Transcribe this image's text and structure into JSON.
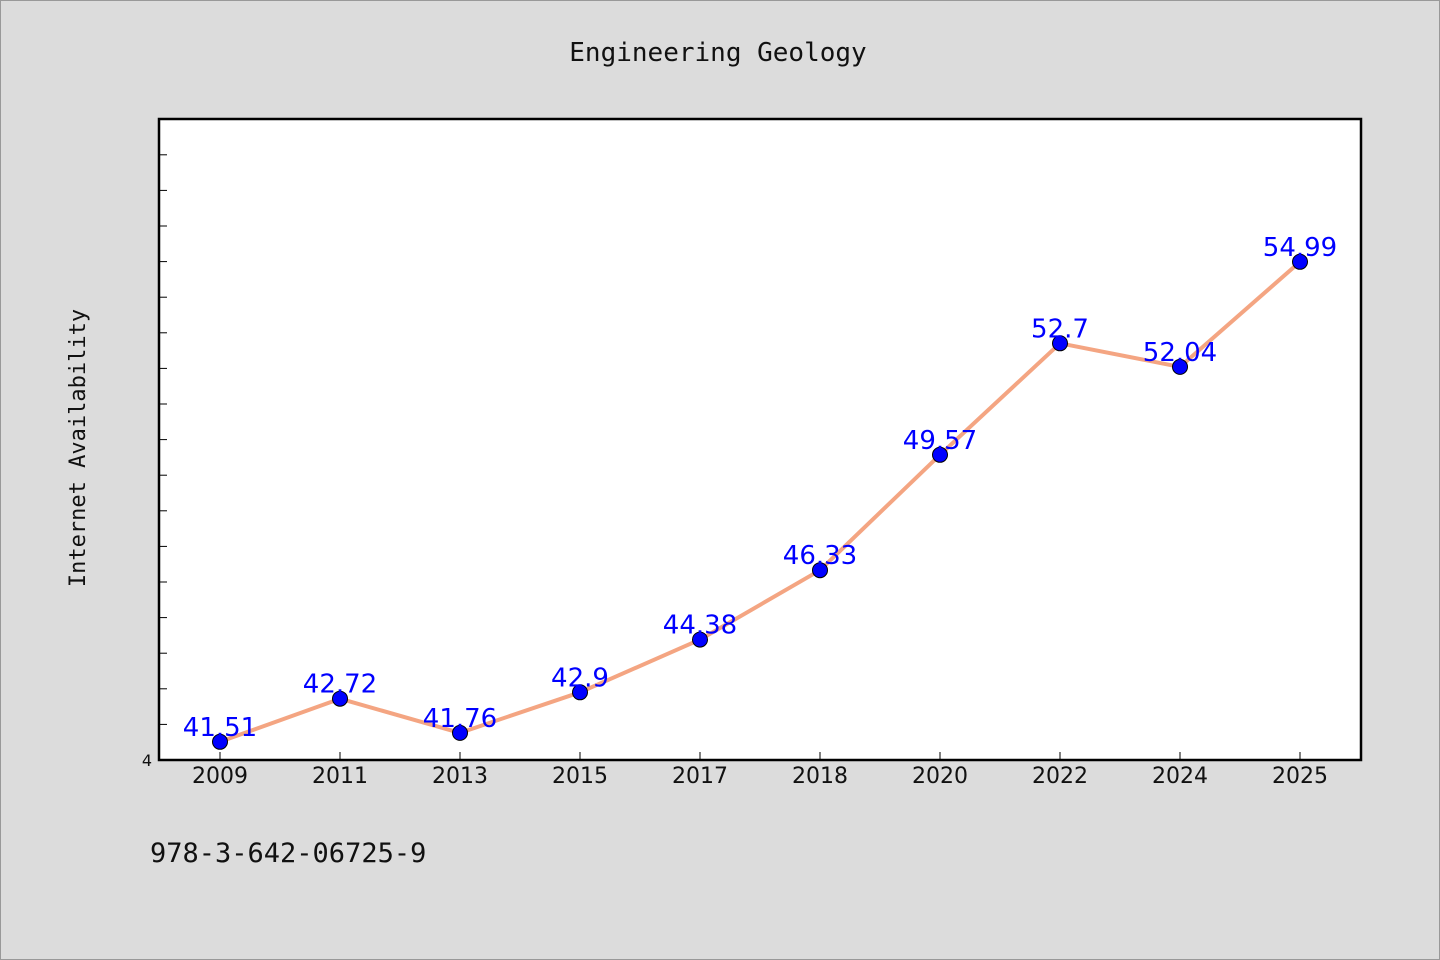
{
  "chart_data": {
    "type": "line",
    "title": "Engineering Geology",
    "ylabel": "Internet Availability",
    "xlabel": "",
    "categories": [
      "2009",
      "2011",
      "2013",
      "2015",
      "2017",
      "2018",
      "2020",
      "2022",
      "2024",
      "2025"
    ],
    "series": [
      {
        "values": [
          41.51,
          42.72,
          41.76,
          42.9,
          44.38,
          46.33,
          49.57,
          52.7,
          52.04,
          54.99
        ],
        "data_labels": [
          "41.51",
          "42.72",
          "41.76",
          "42.9",
          "44.38",
          "46.33",
          "49.57",
          "52.7",
          "52.04",
          "54.99"
        ]
      }
    ],
    "ylim": [
      41.0,
      59.0
    ],
    "ytick_labels": [
      "4"
    ],
    "grid": false,
    "legend": "none",
    "colors": {
      "line": "#f4a582",
      "marker": "#0000ff",
      "label": "#0000ff",
      "plot_bg": "#ffffff",
      "page_bg": "#dcdcdc"
    }
  },
  "footer": {
    "isbn": "978-3-642-06725-9"
  }
}
